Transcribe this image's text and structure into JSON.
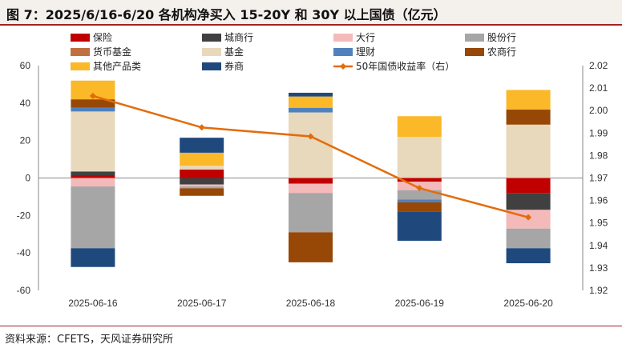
{
  "title": "图 7：2025/6/16-6/20 各机构净买入 15-20Y 和 30Y 以上国债（亿元）",
  "source": "资料来源：CFETS，天风证券研究所",
  "chart_data": {
    "type": "bar",
    "stacked": true,
    "categories": [
      "2025-06-16",
      "2025-06-17",
      "2025-06-18",
      "2025-06-19",
      "2025-06-20"
    ],
    "y_left": {
      "ylim": [
        -60,
        60
      ],
      "ticks": [
        "-60",
        "-40",
        "-20",
        "0",
        "20",
        "40",
        "60"
      ]
    },
    "y_right": {
      "ylim": [
        1.92,
        2.02
      ],
      "ticks": [
        "1.92",
        "1.93",
        "1.94",
        "1.95",
        "1.96",
        "1.97",
        "1.98",
        "1.99",
        "2.00",
        "2.01",
        "2.02"
      ]
    },
    "grid": false,
    "legend_position": "top",
    "series": [
      {
        "name": "保险",
        "color": "#c00000",
        "values": [
          1.5,
          4.5,
          -3,
          -2,
          -8
        ]
      },
      {
        "name": "城商行",
        "color": "#404040",
        "values": [
          2,
          -3.5,
          0,
          0,
          -9
        ]
      },
      {
        "name": "大行",
        "color": "#f4b9b9",
        "values": [
          -4.5,
          -1,
          -5,
          -4.5,
          -10
        ]
      },
      {
        "name": "股份行",
        "color": "#a6a6a6",
        "values": [
          -33,
          -1,
          -21,
          -5,
          -10.5
        ]
      },
      {
        "name": "货币基金",
        "color": "#c07040",
        "values": [
          0,
          0,
          0,
          0,
          0
        ]
      },
      {
        "name": "基金",
        "color": "#e8d8bc",
        "values": [
          32,
          2,
          35,
          22,
          28.5
        ]
      },
      {
        "name": "理财",
        "color": "#4f81bd",
        "values": [
          2,
          0,
          2.5,
          -1.5,
          0
        ]
      },
      {
        "name": "农商行",
        "color": "#974706",
        "values": [
          4.5,
          -4,
          -16,
          -5,
          8
        ]
      },
      {
        "name": "其他产品类",
        "color": "#fbb829",
        "values": [
          10,
          7,
          6,
          11,
          10.5
        ]
      },
      {
        "name": "券商",
        "color": "#1f497d",
        "values": [
          -10,
          8,
          2,
          -15.5,
          -8
        ]
      }
    ],
    "line": {
      "name": "50年国债收益率（右）",
      "color": "#e36c0a",
      "axis": "right",
      "values": [
        2.0065,
        1.9925,
        1.9885,
        1.9655,
        1.9525
      ]
    }
  }
}
